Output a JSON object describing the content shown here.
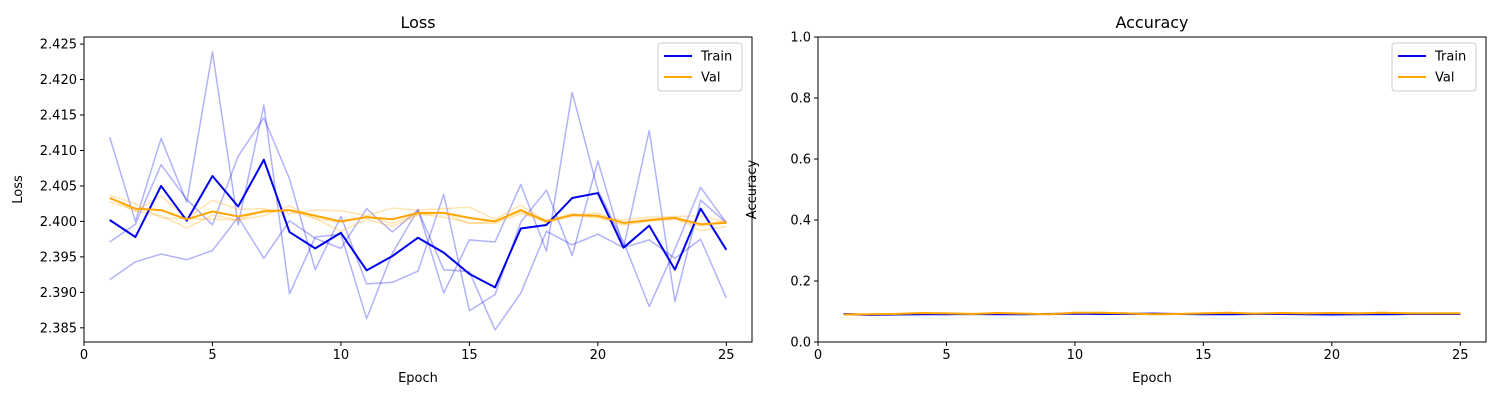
{
  "chart_data": [
    {
      "type": "line",
      "title": "Loss",
      "xlabel": "Epoch",
      "ylabel": "Loss",
      "xlim": [
        0,
        26
      ],
      "ylim": [
        2.383,
        2.426
      ],
      "xticks": [
        0,
        5,
        10,
        15,
        20,
        25
      ],
      "yticks": [
        2.385,
        2.39,
        2.395,
        2.4,
        2.405,
        2.41,
        2.415,
        2.42,
        2.425
      ],
      "ytick_labels": [
        "2.385",
        "2.390",
        "2.395",
        "2.400",
        "2.405",
        "2.410",
        "2.415",
        "2.420",
        "2.425"
      ],
      "legend": {
        "location": "top-right",
        "entries": [
          "Train",
          "Val"
        ]
      },
      "grid": false,
      "x": [
        1,
        2,
        3,
        4,
        5,
        6,
        7,
        8,
        9,
        10,
        11,
        12,
        13,
        14,
        15,
        16,
        17,
        18,
        19,
        20,
        21,
        22,
        23,
        24,
        25
      ],
      "series": [
        {
          "name": "Train",
          "color": "#0000ee",
          "values": [
            2.4002,
            2.3978,
            2.405,
            2.4001,
            2.4064,
            2.4021,
            2.4087,
            2.3985,
            2.3962,
            2.3984,
            2.3931,
            2.3951,
            2.3977,
            2.3956,
            2.3926,
            2.3907,
            2.399,
            2.3995,
            2.4033,
            2.404,
            2.3963,
            2.3994,
            2.3932,
            2.4018,
            2.396
          ]
        },
        {
          "name": "Val",
          "color": "#ffa500",
          "values": [
            2.4033,
            2.4018,
            2.4016,
            2.4003,
            2.4014,
            2.4007,
            2.4014,
            2.4016,
            2.4008,
            2.4,
            2.4006,
            2.4003,
            2.4012,
            2.4012,
            2.4005,
            2.4,
            2.4016,
            2.4,
            2.4009,
            2.4008,
            2.3998,
            2.4002,
            2.4005,
            2.3996,
            2.3998
          ]
        }
      ],
      "runs": [
        {
          "color": "#0000ee",
          "values": [
            2.4119,
            2.4,
            2.4117,
            2.4027,
            2.4239,
            2.3995,
            2.4164,
            2.3898,
            2.3978,
            2.3982,
            2.3863,
            2.3955,
            2.4017,
            2.3899,
            2.3974,
            2.3971,
            2.4052,
            2.3958,
            2.4182,
            2.4044,
            2.3971,
            2.388,
            2.3961,
            2.4048,
            2.3998
          ]
        },
        {
          "color": "#0000ee",
          "values": [
            2.3971,
            2.3996,
            2.408,
            2.4031,
            2.3995,
            2.4092,
            2.4146,
            2.406,
            2.3932,
            2.4007,
            2.3912,
            2.3914,
            2.393,
            2.4038,
            2.3874,
            2.3897,
            2.3999,
            2.4044,
            2.3952,
            2.4085,
            2.3963,
            2.4128,
            2.3887,
            2.403,
            2.3998
          ]
        },
        {
          "color": "#0000ee",
          "values": [
            2.3918,
            2.3943,
            2.3954,
            2.3946,
            2.3959,
            2.4006,
            2.3948,
            2.4001,
            2.3976,
            2.3962,
            2.4018,
            2.3985,
            2.4016,
            2.3932,
            2.3929,
            2.3847,
            2.3899,
            2.3986,
            2.3967,
            2.3982,
            2.3963,
            2.3974,
            2.3948,
            2.3975,
            2.3892
          ]
        },
        {
          "color": "#ffa500",
          "values": [
            2.4037,
            2.4025,
            2.4005,
            2.4004,
            2.403,
            2.4017,
            2.4018,
            2.4011,
            2.4016,
            2.4015,
            2.4008,
            2.4019,
            2.4016,
            2.4018,
            2.402,
            2.4003,
            2.4023,
            2.4,
            2.4011,
            2.4007,
            2.4002,
            2.4006,
            2.4007,
            2.4008,
            2.3999
          ]
        },
        {
          "color": "#ffa500",
          "values": [
            2.4028,
            2.4015,
            2.4008,
            2.3991,
            2.4009,
            2.4002,
            2.4008,
            2.4022,
            2.4004,
            2.3999,
            2.4007,
            2.3997,
            2.4011,
            2.4006,
            2.3998,
            2.3997,
            2.4011,
            2.4002,
            2.4008,
            2.4005,
            2.3995,
            2.4,
            2.4003,
            2.3993,
            2.4002
          ]
        },
        {
          "color": "#ffa500",
          "values": [
            2.4034,
            2.4014,
            2.4036,
            2.4004,
            2.4003,
            2.4002,
            2.4016,
            2.4015,
            2.4004,
            2.3986,
            2.4003,
            2.3993,
            2.4009,
            2.4012,
            2.3997,
            2.4,
            2.4014,
            2.3998,
            2.4008,
            2.4012,
            2.3997,
            2.4001,
            2.4005,
            2.3987,
            2.3993
          ]
        }
      ]
    },
    {
      "type": "line",
      "title": "Accuracy",
      "xlabel": "Epoch",
      "ylabel": "Accuracy",
      "xlim": [
        0,
        26
      ],
      "ylim": [
        0.0,
        1.0
      ],
      "xticks": [
        0,
        5,
        10,
        15,
        20,
        25
      ],
      "yticks": [
        0.0,
        0.2,
        0.4,
        0.6,
        0.8,
        1.0
      ],
      "ytick_labels": [
        "0.0",
        "0.2",
        "0.4",
        "0.6",
        "0.8",
        "1.0"
      ],
      "legend": {
        "location": "top-right",
        "entries": [
          "Train",
          "Val"
        ]
      },
      "grid": false,
      "x": [
        1,
        2,
        3,
        4,
        5,
        6,
        7,
        8,
        9,
        10,
        11,
        12,
        13,
        14,
        15,
        16,
        17,
        18,
        19,
        20,
        21,
        22,
        23,
        24,
        25
      ],
      "series": [
        {
          "name": "Train",
          "color": "#0000ee",
          "values": [
            0.092,
            0.089,
            0.09,
            0.091,
            0.091,
            0.092,
            0.091,
            0.091,
            0.092,
            0.093,
            0.092,
            0.092,
            0.093,
            0.092,
            0.091,
            0.091,
            0.092,
            0.092,
            0.091,
            0.09,
            0.091,
            0.091,
            0.092,
            0.092,
            0.092
          ]
        },
        {
          "name": "Val",
          "color": "#ffa500",
          "values": [
            0.09,
            0.091,
            0.092,
            0.095,
            0.094,
            0.092,
            0.095,
            0.093,
            0.091,
            0.096,
            0.096,
            0.094,
            0.091,
            0.092,
            0.094,
            0.096,
            0.093,
            0.095,
            0.094,
            0.095,
            0.094,
            0.096,
            0.094,
            0.094,
            0.094
          ]
        }
      ],
      "runs": [
        {
          "color": "#0000ee",
          "values": [
            0.093,
            0.09,
            0.091,
            0.092,
            0.09,
            0.093,
            0.092,
            0.09,
            0.093,
            0.094,
            0.091,
            0.093,
            0.094,
            0.091,
            0.092,
            0.09,
            0.093,
            0.091,
            0.092,
            0.091,
            0.09,
            0.092,
            0.093,
            0.091,
            0.093
          ]
        },
        {
          "color": "#0000ee",
          "values": [
            0.091,
            0.088,
            0.091,
            0.09,
            0.092,
            0.091,
            0.09,
            0.092,
            0.091,
            0.092,
            0.093,
            0.091,
            0.092,
            0.093,
            0.09,
            0.092,
            0.091,
            0.093,
            0.09,
            0.089,
            0.092,
            0.09,
            0.091,
            0.093,
            0.091
          ]
        },
        {
          "color": "#ffa500",
          "values": [
            0.089,
            0.092,
            0.093,
            0.096,
            0.093,
            0.091,
            0.096,
            0.094,
            0.09,
            0.097,
            0.095,
            0.095,
            0.09,
            0.093,
            0.095,
            0.097,
            0.092,
            0.096,
            0.093,
            0.096,
            0.095,
            0.097,
            0.093,
            0.095,
            0.095
          ]
        },
        {
          "color": "#ffa500",
          "values": [
            0.091,
            0.09,
            0.091,
            0.094,
            0.095,
            0.093,
            0.094,
            0.092,
            0.092,
            0.095,
            0.097,
            0.093,
            0.092,
            0.091,
            0.093,
            0.095,
            0.094,
            0.094,
            0.095,
            0.094,
            0.093,
            0.095,
            0.095,
            0.093,
            0.093
          ]
        }
      ]
    }
  ]
}
